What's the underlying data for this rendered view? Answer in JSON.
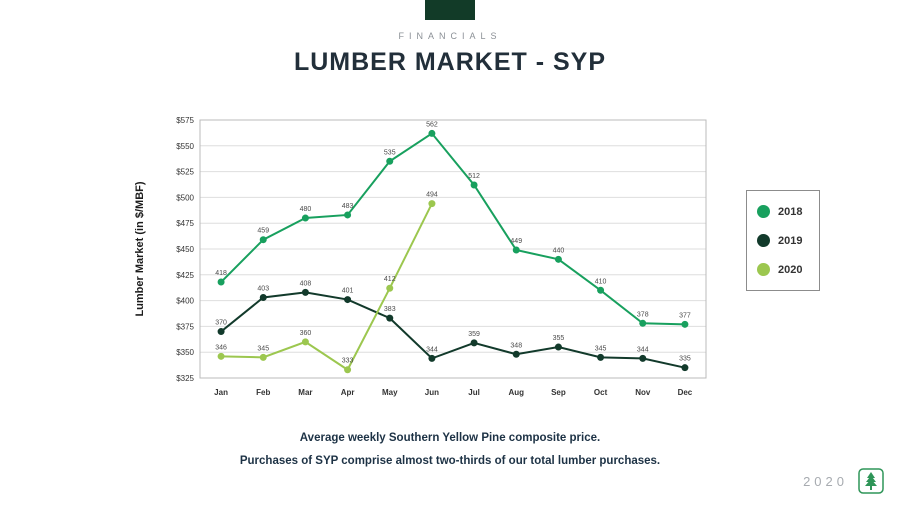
{
  "header": {
    "eyebrow": "FINANCIALS",
    "title": "LUMBER MARKET - SYP"
  },
  "chart_data": {
    "type": "line",
    "title": "Lumber Market - SYP",
    "ylabel": "Lumber Market  (in $/MBF)",
    "xlabel": "",
    "categories": [
      "Jan",
      "Feb",
      "Mar",
      "Apr",
      "May",
      "Jun",
      "Jul",
      "Aug",
      "Sep",
      "Oct",
      "Nov",
      "Dec"
    ],
    "ylim": [
      325,
      575
    ],
    "ytick_step": 25,
    "ytick_prefix": "$",
    "grid": true,
    "legend_position": "right",
    "series": [
      {
        "name": "2018",
        "color": "#18a05e",
        "values": [
          418,
          459,
          480,
          483,
          535,
          562,
          512,
          449,
          440,
          410,
          378,
          377
        ]
      },
      {
        "name": "2019",
        "color": "#123a2b",
        "values": [
          370,
          403,
          408,
          401,
          383,
          344,
          359,
          348,
          355,
          345,
          344,
          335
        ]
      },
      {
        "name": "2020",
        "color": "#9cc74f",
        "values": [
          346,
          345,
          360,
          333,
          412,
          494,
          null,
          null,
          null,
          null,
          null,
          null
        ]
      }
    ]
  },
  "caption": {
    "line1": "Average weekly Southern Yellow Pine composite price.",
    "line2": "Purchases of SYP comprise almost two-thirds of our total lumber purchases."
  },
  "footer": {
    "year": "2020"
  },
  "colors": {
    "accent_bar": "#123b28",
    "title": "#222f3a",
    "eyebrow": "#8b9096",
    "caption": "#1d3245",
    "logo_green": "#2f9558"
  }
}
